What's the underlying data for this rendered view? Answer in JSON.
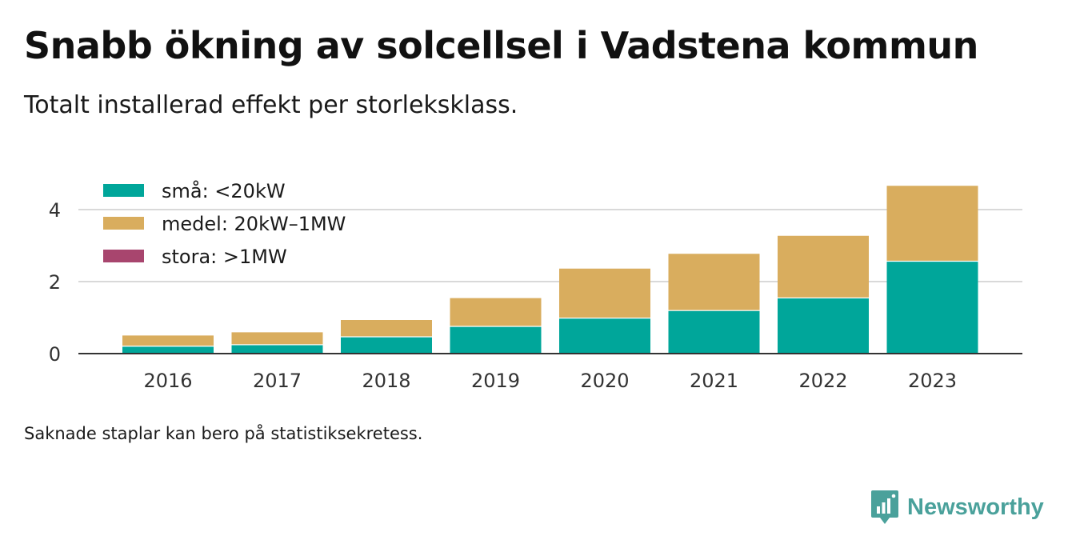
{
  "title": "Snabb ökning av solcellsel i Vadstena kommun",
  "subtitle": "Totalt installerad effekt per storleksklass.",
  "footnote": "Saknade staplar kan bero på statistiksekretess.",
  "brand": {
    "name": "Newsworthy",
    "icon": "newsworthy-logo-icon",
    "color": "#4aa19b"
  },
  "chart_data": {
    "type": "bar",
    "stacked": true,
    "categories": [
      "2016",
      "2017",
      "2018",
      "2019",
      "2020",
      "2021",
      "2022",
      "2023"
    ],
    "series": [
      {
        "name": "små: <20kW",
        "color": "#00a69a",
        "values": [
          0.22,
          0.26,
          0.48,
          0.77,
          1.0,
          1.21,
          1.56,
          2.58
        ]
      },
      {
        "name": "medel: 20kW–1MW",
        "color": "#d9ad5e",
        "values": [
          0.31,
          0.36,
          0.48,
          0.8,
          1.39,
          1.59,
          1.74,
          2.11
        ]
      },
      {
        "name": "stora: >1MW",
        "color": "#a8456e",
        "values": [
          0,
          0,
          0,
          0,
          0,
          0,
          0,
          0
        ]
      }
    ],
    "yticks": [
      0,
      2,
      4
    ],
    "ylim": [
      0,
      4.7
    ],
    "grid": true,
    "legend": "top-left"
  }
}
